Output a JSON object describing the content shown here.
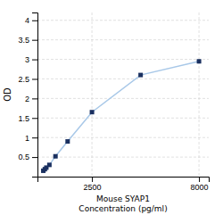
{
  "chart_data": {
    "type": "line",
    "x": [
      0,
      78.125,
      156.25,
      312.5,
      625,
      1250,
      2500,
      5000,
      8000
    ],
    "values": [
      0.15,
      0.19,
      0.23,
      0.3,
      0.52,
      0.9,
      1.65,
      2.6,
      2.95
    ],
    "xlabel": [
      "Mouse SYAP1",
      "Concentration (pg/ml)"
    ],
    "ylabel": "OD",
    "xlim": [
      -300,
      8500
    ],
    "ylim": [
      0.0,
      4.2
    ],
    "xticks": [
      2500,
      8000
    ],
    "yticks": [
      0.5,
      1,
      1.5,
      2,
      2.5,
      3,
      3.5,
      4
    ],
    "color": "#a8c8e8",
    "colors": [
      "#1a3060",
      "#1a3060",
      "#1a3060",
      "#1a3060",
      "#1a3060",
      "#1a3060",
      "#1a3060",
      "#1a3060",
      "#1a3060"
    ],
    "marker": "square",
    "grid": true
  }
}
